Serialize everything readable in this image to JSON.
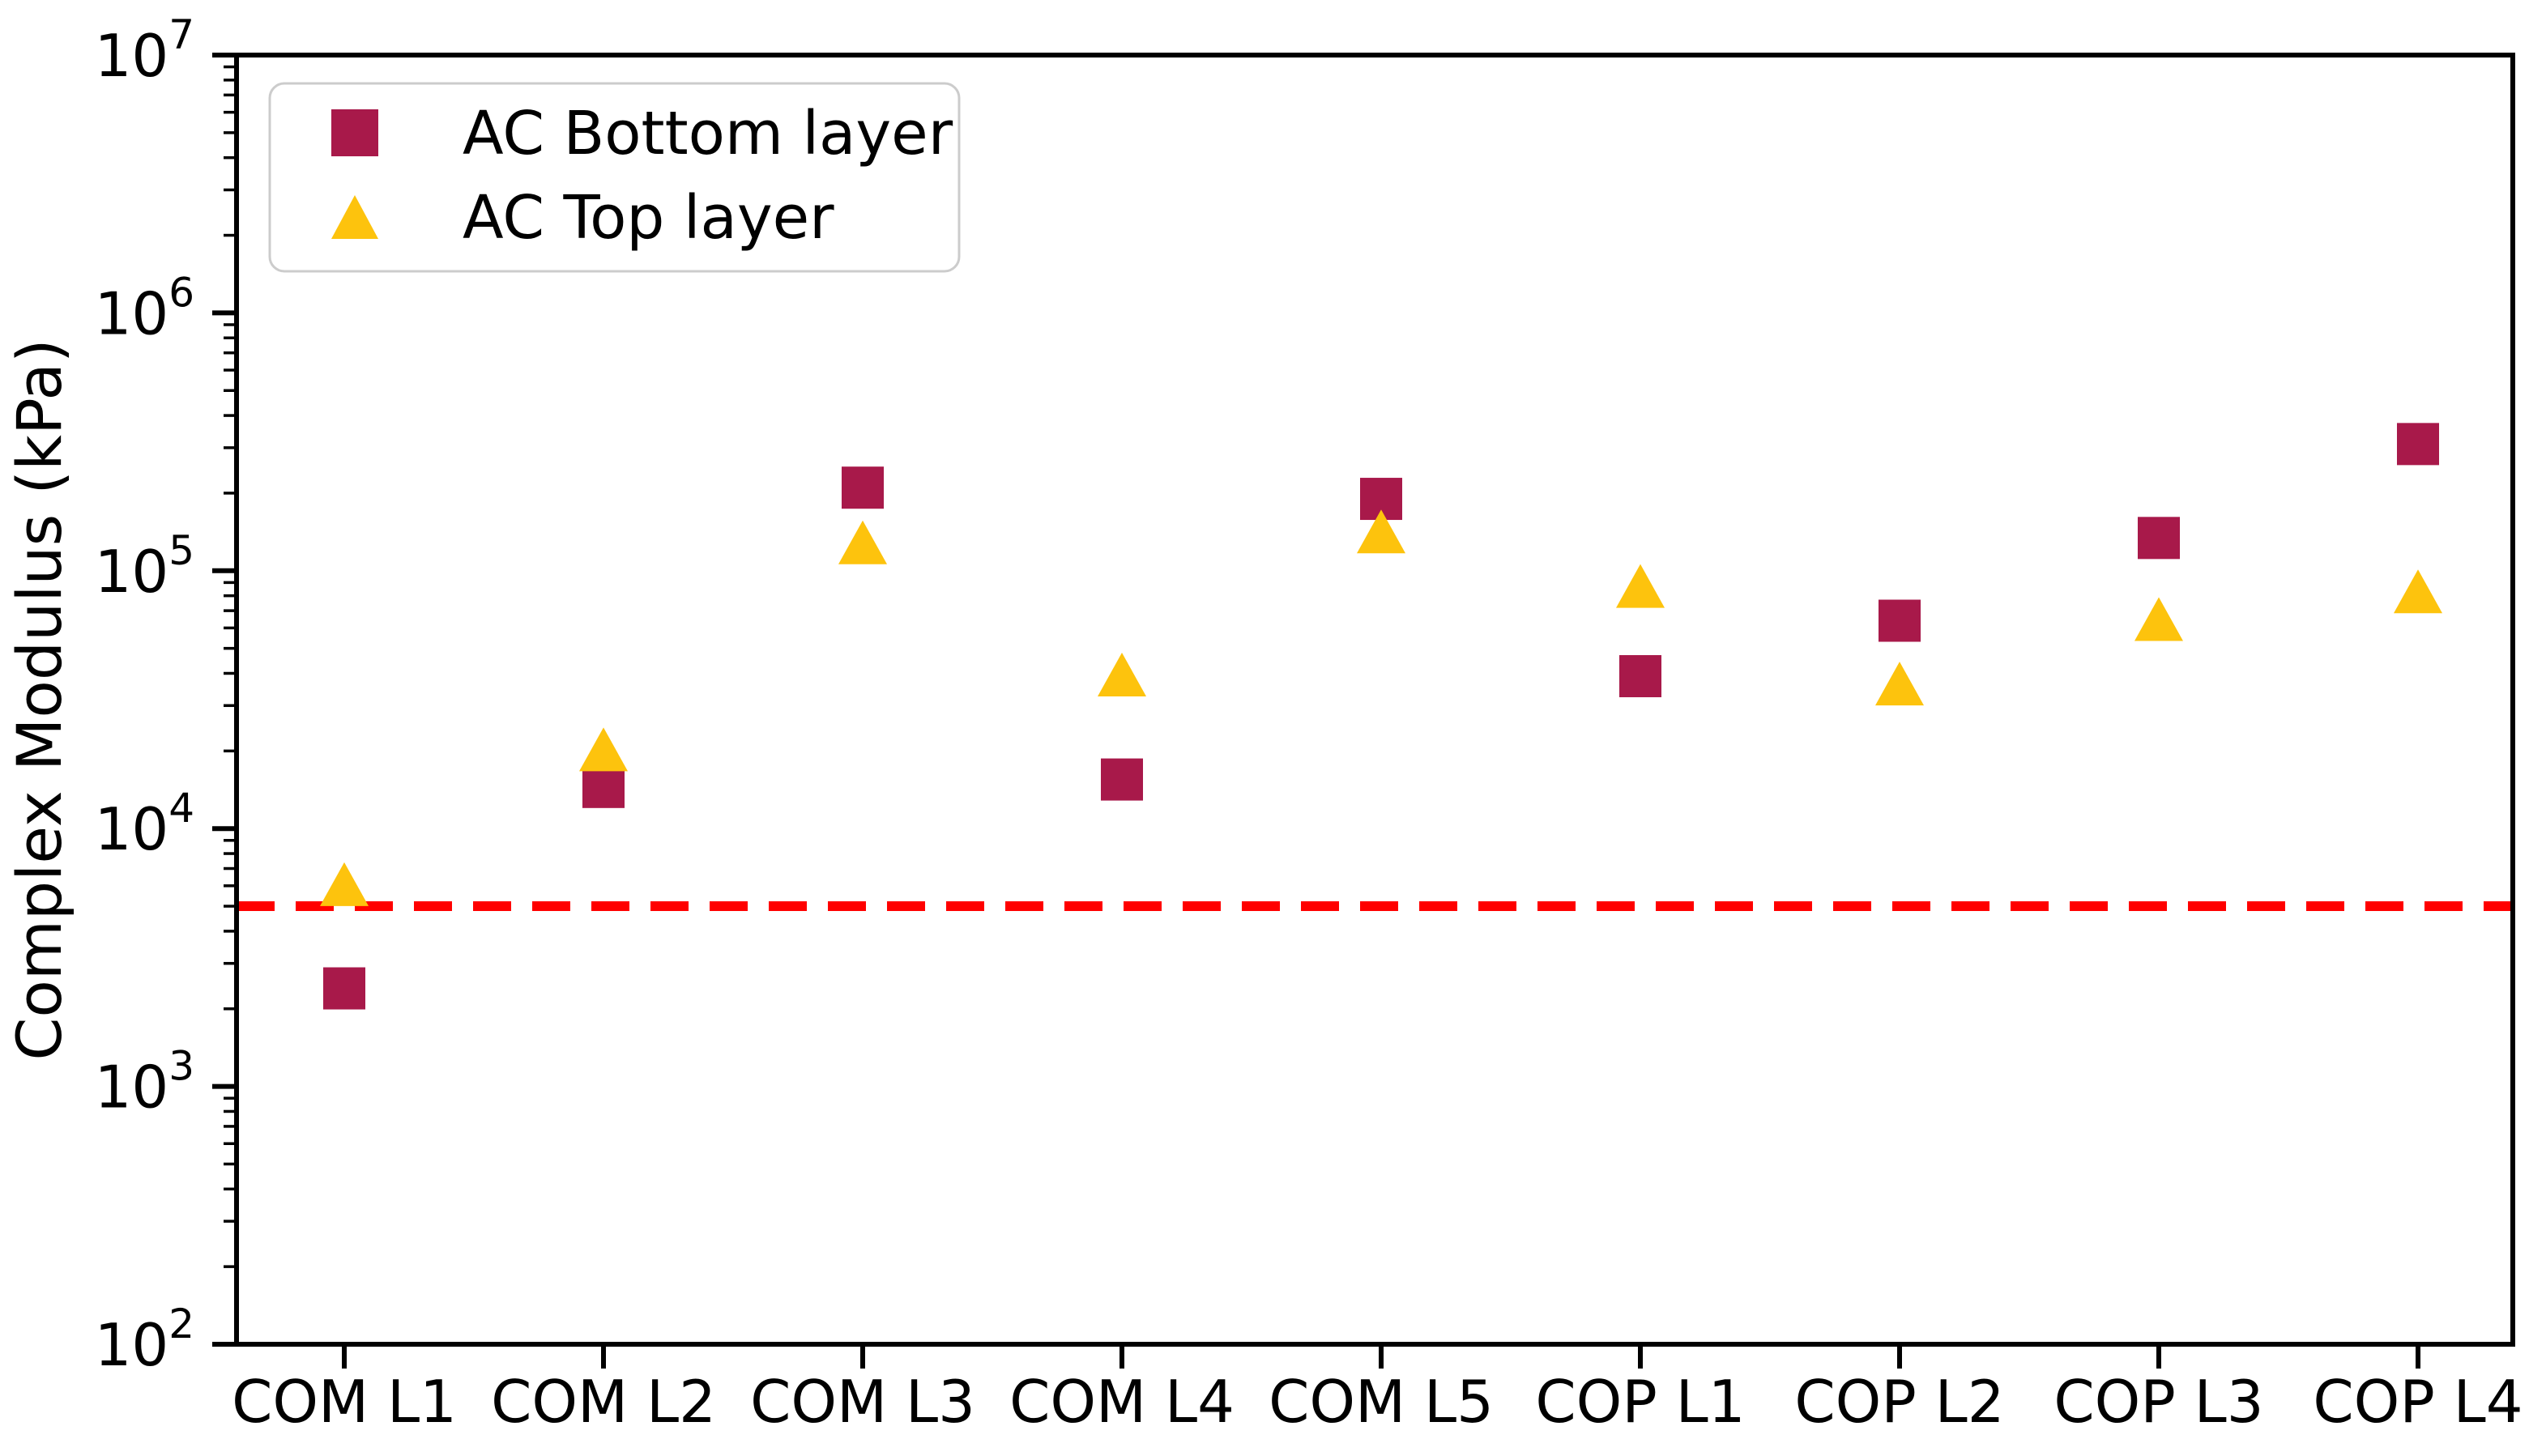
{
  "chart_data": {
    "type": "scatter",
    "title": "",
    "xlabel": "",
    "ylabel": "Complex Modulus (kPa)",
    "yscale": "log",
    "ylim": [
      100,
      10000000
    ],
    "ytick_exponents": [
      2,
      3,
      4,
      5,
      6,
      7
    ],
    "grid": false,
    "categories": [
      "COM L1",
      "COM L2",
      "COM L3",
      "COM L4",
      "COM L5",
      "COP L1",
      "COP L2",
      "COP L3",
      "COP L4"
    ],
    "series": [
      {
        "name": "AC Bottom layer",
        "marker": "square",
        "color": "#A8194A",
        "values": [
          2400,
          14500,
          210000,
          15500,
          190000,
          39000,
          64000,
          134000,
          310000
        ]
      },
      {
        "name": "AC Top layer",
        "marker": "triangle",
        "color": "#FDC30D",
        "values": [
          6000,
          20000,
          127000,
          39000,
          140000,
          86000,
          36000,
          64000,
          82000
        ]
      }
    ],
    "reference_line": {
      "value": 5000,
      "color": "#FF0000",
      "style": "dashed"
    },
    "legend_position": "upper-left",
    "axis_color": "#000000"
  }
}
